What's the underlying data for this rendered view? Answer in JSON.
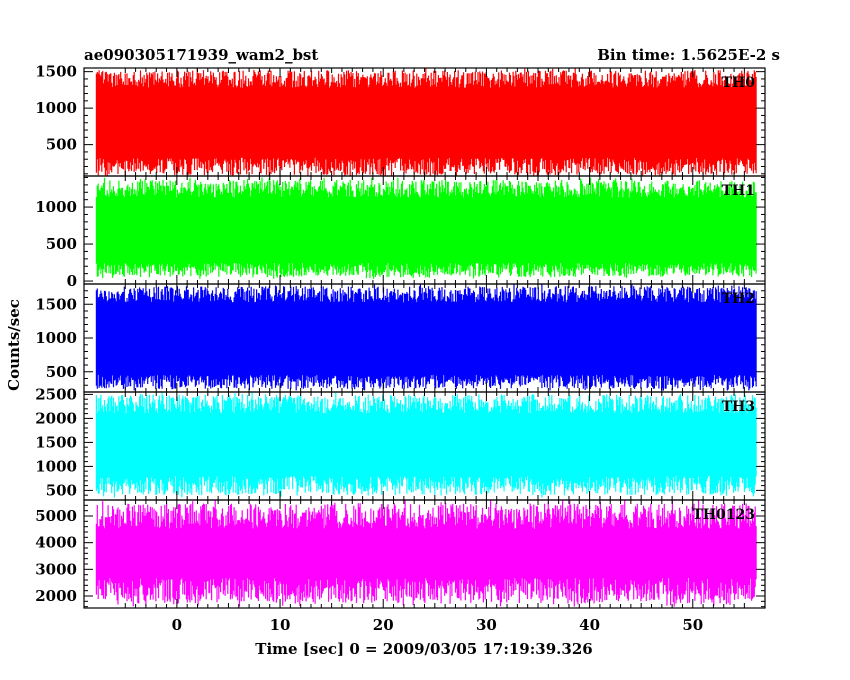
{
  "header": {
    "title_left": "ae090305171939_wam2_bst",
    "title_right": "Bin time: 1.5625E-2 s"
  },
  "chart_data": {
    "type": "line",
    "xlabel": "Time [sec] 0 = 2009/03/05 17:19:39.326",
    "ylabel": "Counts/sec",
    "xlim": [
      -9,
      57
    ],
    "x_data_range": [
      -7.8,
      56.2
    ],
    "xticks": [
      0,
      10,
      20,
      30,
      40,
      50
    ],
    "grid": false,
    "panels": [
      {
        "name": "TH0",
        "color": "#ff0000",
        "ylim": [
          70,
          1550
        ],
        "yticks": [
          500,
          1000,
          1500
        ],
        "typical_range": [
          200,
          1400
        ],
        "peak_range": [
          50,
          1550
        ]
      },
      {
        "name": "TH1",
        "color": "#00ff00",
        "ylim": [
          -40,
          1420
        ],
        "yticks": [
          0,
          500,
          1000
        ],
        "typical_range": [
          150,
          1250
        ],
        "peak_range": [
          30,
          1400
        ]
      },
      {
        "name": "TH2",
        "color": "#0000ff",
        "ylim": [
          200,
          1800
        ],
        "yticks": [
          500,
          1000,
          1500
        ],
        "typical_range": [
          350,
          1650
        ],
        "peak_range": [
          220,
          1800
        ]
      },
      {
        "name": "TH3",
        "color": "#00ffff",
        "ylim": [
          300,
          2550
        ],
        "yticks": [
          500,
          1000,
          1500,
          2000,
          2500
        ],
        "typical_range": [
          600,
          2300
        ],
        "peak_range": [
          350,
          2550
        ]
      },
      {
        "name": "TH0123",
        "color": "#ff00ff",
        "ylim": [
          1550,
          5600
        ],
        "yticks": [
          2000,
          3000,
          4000,
          5000
        ],
        "typical_range": [
          2200,
          5000
        ],
        "peak_range": [
          1600,
          5600
        ]
      }
    ]
  }
}
